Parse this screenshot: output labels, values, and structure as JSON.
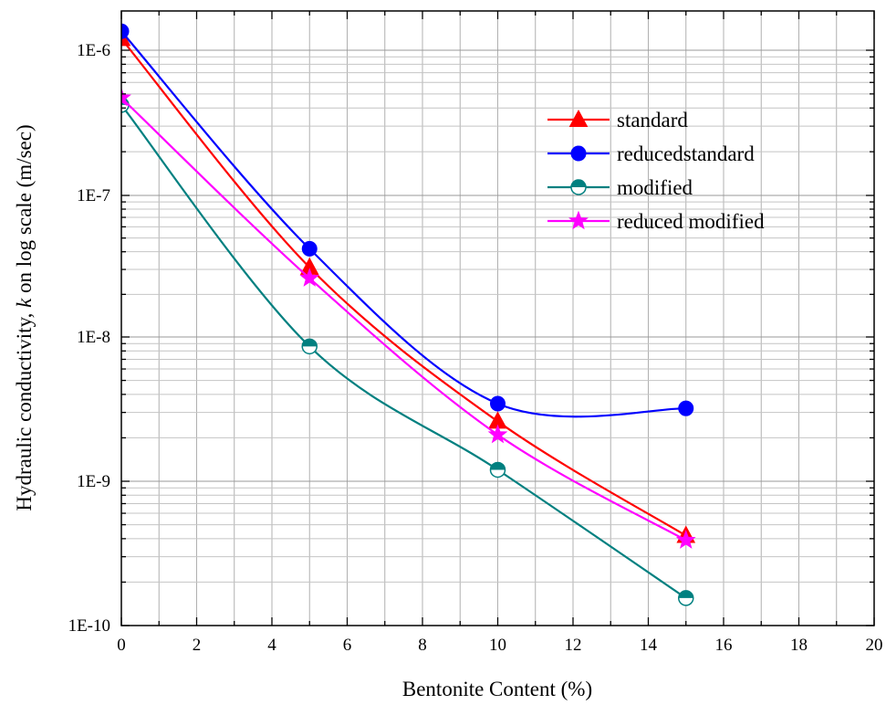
{
  "chart_data": {
    "type": "line",
    "title": "",
    "xlabel": "Bentonite Content (%)",
    "ylabel_prefix": "Hydraulic conductivity, ",
    "ylabel_italic": "k",
    "ylabel_suffix": " on log scale (m/sec)",
    "xlim": [
      0,
      20
    ],
    "x_ticks": [
      0,
      2,
      4,
      6,
      8,
      10,
      12,
      14,
      16,
      18,
      20
    ],
    "ylim": [
      1e-10,
      3e-06
    ],
    "y_scale": "log",
    "y_ticks": [
      1e-10,
      1e-09,
      1e-08,
      1e-07,
      1e-06
    ],
    "y_tick_labels": [
      "1E-10",
      "1E-9",
      "1E-8",
      "1E-7",
      "1E-6"
    ],
    "grid": true,
    "legend_position": "top-right",
    "x": [
      0,
      5,
      10,
      15
    ],
    "series": [
      {
        "name": "standard",
        "color": "#ff0000",
        "marker": "triangle",
        "values": [
          1.2e-06,
          3.1e-08,
          2.6e-09,
          4.2e-10
        ]
      },
      {
        "name": "reducedstandard",
        "color": "#0000ff",
        "marker": "circle",
        "values": [
          1.35e-06,
          4.2e-08,
          3.45e-09,
          3.2e-09
        ]
      },
      {
        "name": "modified",
        "color": "#008080",
        "marker": "half-circle",
        "values": [
          4.2e-07,
          8.6e-09,
          1.2e-09,
          1.55e-10
        ]
      },
      {
        "name": "reduced modified",
        "color": "#ff00ff",
        "marker": "star",
        "values": [
          4.7e-07,
          2.6e-08,
          2.1e-09,
          3.9e-10
        ]
      }
    ]
  }
}
